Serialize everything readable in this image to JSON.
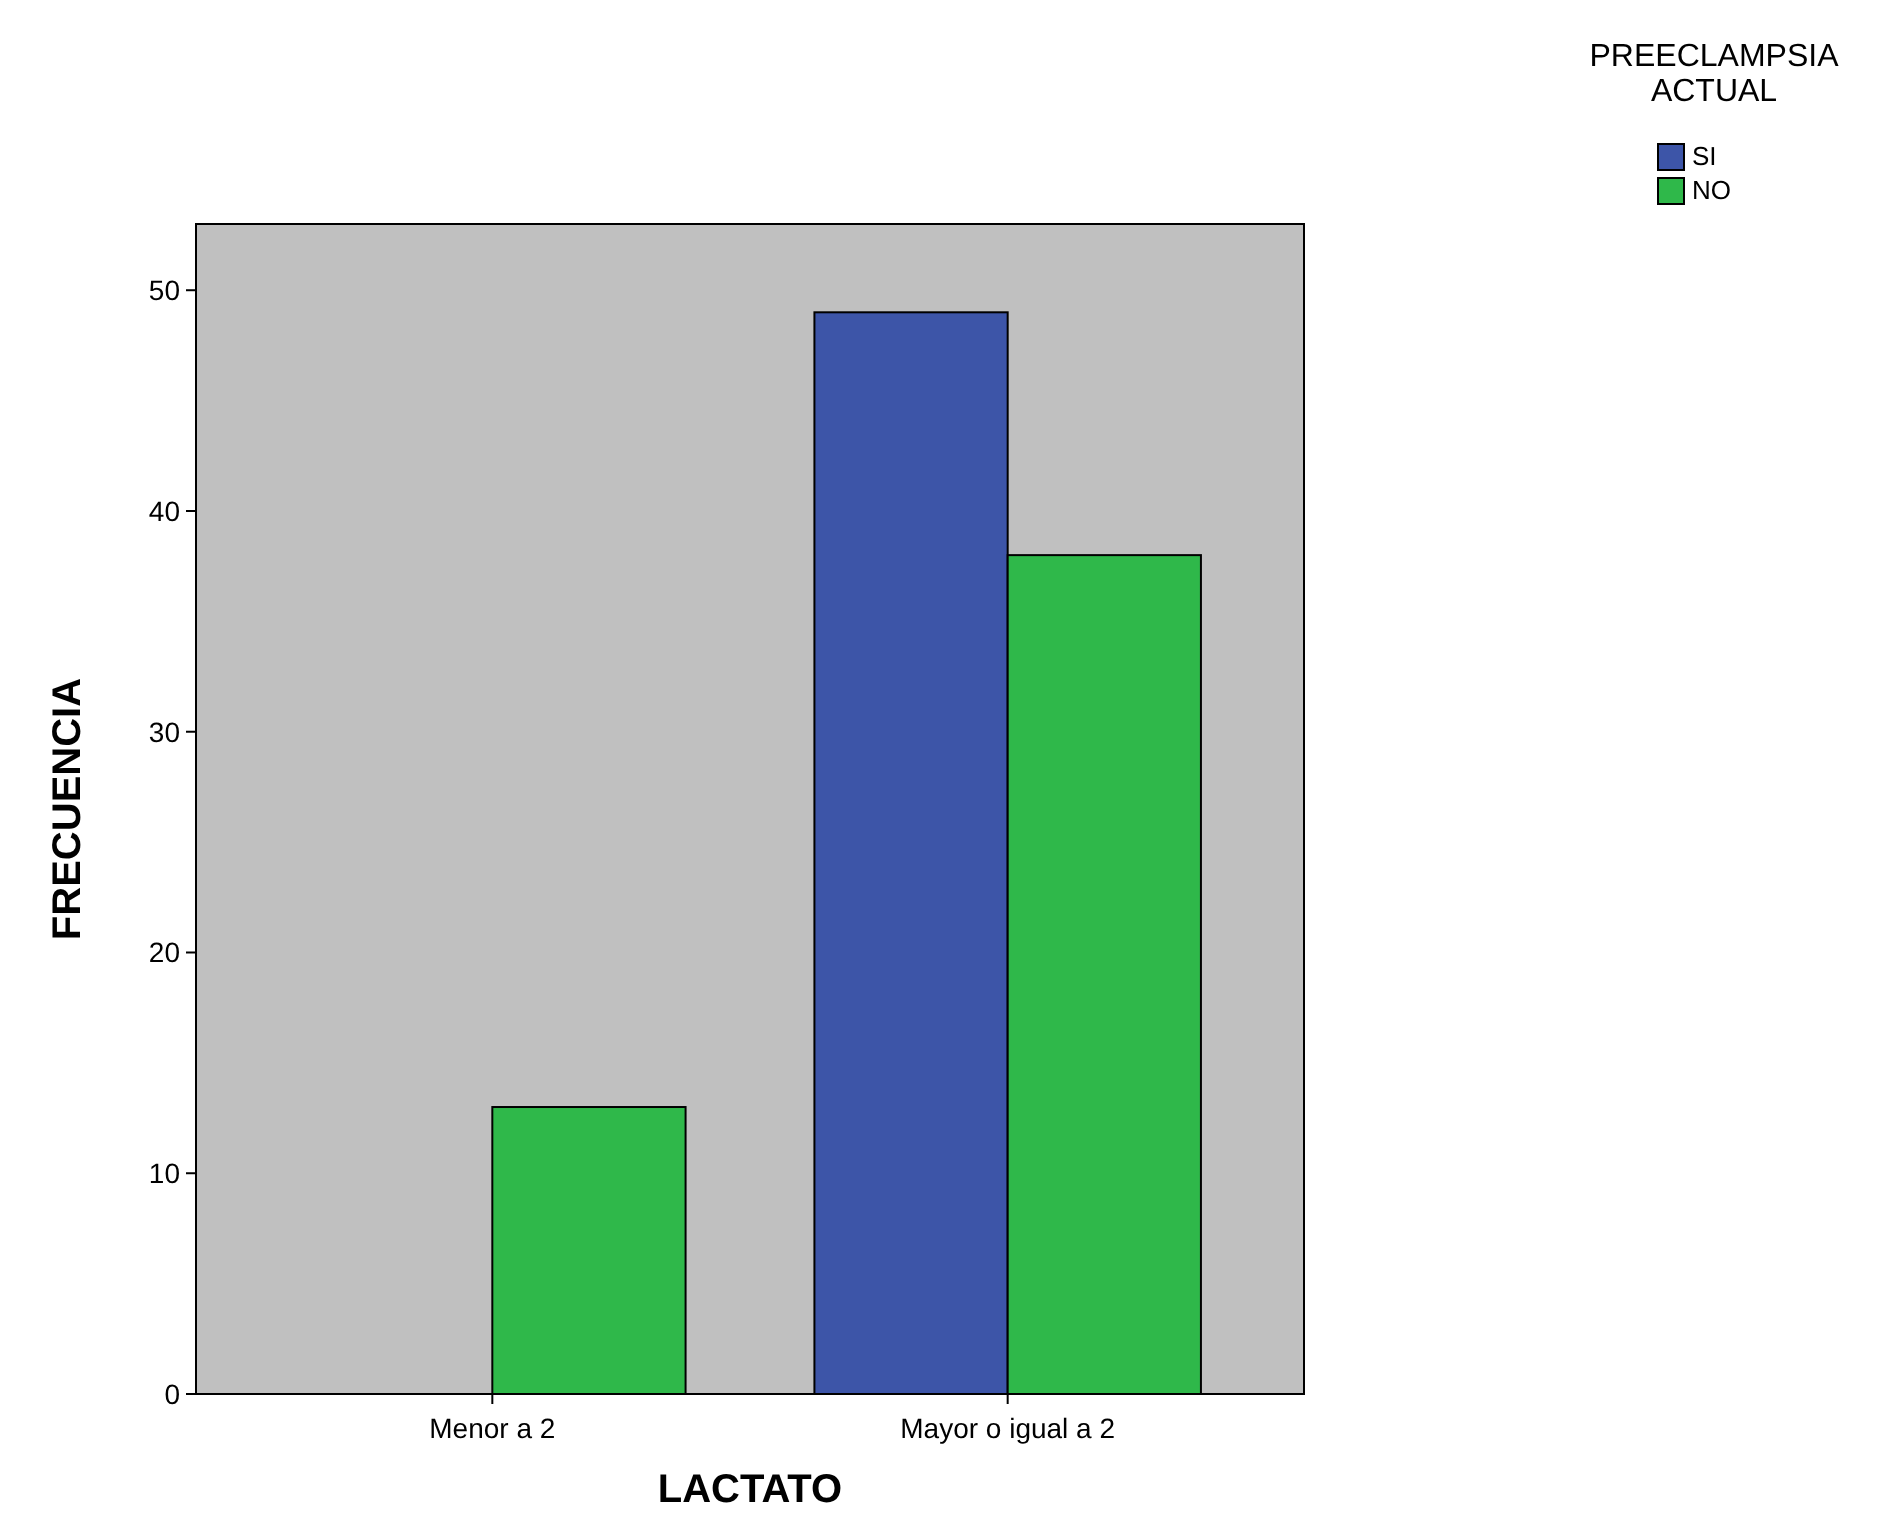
{
  "chart_data": {
    "type": "bar",
    "xlabel": "LACTATO",
    "ylabel": "FRECUENCIA",
    "legend_title": "PREECLAMPSIA ACTUAL",
    "categories": [
      "Menor a 2",
      "Mayor o igual a 2"
    ],
    "series": [
      {
        "name": "SI",
        "color": "#3d55a8",
        "values": [
          0,
          49
        ]
      },
      {
        "name": "NO",
        "color": "#2fb84a",
        "values": [
          13,
          38
        ]
      }
    ],
    "ylim": [
      0,
      53
    ],
    "yticks": [
      0,
      10,
      20,
      30,
      40,
      50
    ],
    "grid": false,
    "legend": "top right"
  }
}
